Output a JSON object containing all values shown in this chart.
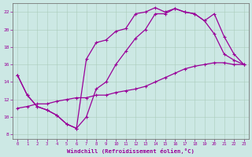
{
  "bg_color": "#cce8e4",
  "line_color": "#990099",
  "xlabel": "Windchill (Refroidissement éolien,°C)",
  "x_min": -0.5,
  "x_max": 23.5,
  "y_min": 7.5,
  "y_max": 23.0,
  "yticks": [
    8,
    10,
    12,
    14,
    16,
    18,
    20,
    22
  ],
  "xticks": [
    0,
    1,
    2,
    3,
    4,
    5,
    6,
    7,
    8,
    9,
    10,
    11,
    12,
    13,
    14,
    15,
    16,
    17,
    18,
    19,
    20,
    21,
    22,
    23
  ],
  "curve1_x": [
    0,
    1,
    2,
    3,
    4,
    5,
    6,
    7,
    8,
    9,
    10,
    11,
    12,
    13,
    14,
    15,
    16,
    17,
    18,
    19,
    20,
    21,
    22,
    23
  ],
  "curve1_y": [
    14.8,
    12.5,
    11.2,
    10.8,
    10.2,
    9.2,
    8.7,
    16.6,
    18.5,
    18.8,
    19.8,
    20.1,
    21.8,
    22.0,
    22.5,
    22.0,
    22.4,
    22.0,
    21.8,
    21.0,
    21.8,
    19.2,
    17.2,
    16.0
  ],
  "curve2_x": [
    0,
    1,
    2,
    3,
    4,
    5,
    6,
    7,
    8,
    9,
    10,
    11,
    12,
    13,
    14,
    15,
    16,
    17,
    18,
    19,
    20,
    21,
    22,
    23
  ],
  "curve2_y": [
    14.8,
    12.5,
    11.2,
    10.8,
    10.2,
    9.2,
    8.7,
    10.0,
    13.2,
    14.0,
    16.0,
    17.5,
    19.0,
    20.0,
    21.8,
    21.8,
    22.4,
    22.0,
    21.8,
    21.0,
    19.5,
    17.2,
    16.5,
    16.0
  ],
  "curve3_x": [
    0,
    1,
    2,
    3,
    4,
    5,
    6,
    7,
    8,
    9,
    10,
    11,
    12,
    13,
    14,
    15,
    16,
    17,
    18,
    19,
    20,
    21,
    22,
    23
  ],
  "curve3_y": [
    11.0,
    11.2,
    11.5,
    11.5,
    11.8,
    12.0,
    12.2,
    12.2,
    12.5,
    12.5,
    12.8,
    13.0,
    13.2,
    13.5,
    14.0,
    14.5,
    15.0,
    15.5,
    15.8,
    16.0,
    16.2,
    16.2,
    16.0,
    16.0
  ]
}
